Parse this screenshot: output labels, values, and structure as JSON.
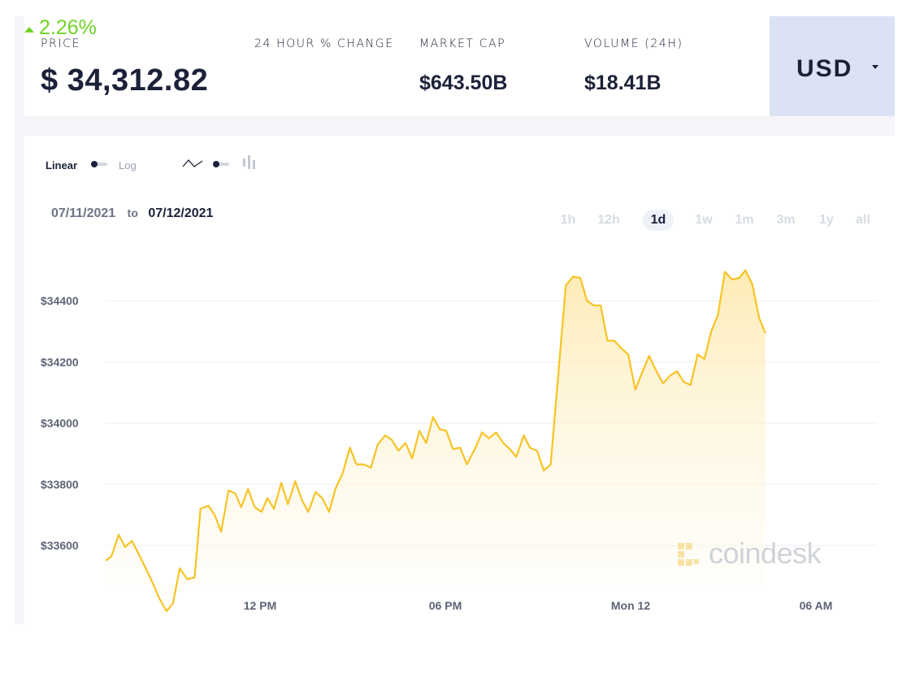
{
  "stats": {
    "price_label": "PRICE",
    "price_value": "$ 34,312.82",
    "change_label": "24 HOUR % CHANGE",
    "change_value": "2.26%",
    "market_cap_label": "MARKET CAP",
    "market_cap_value": "$643.50B",
    "volume_label": "VOLUME (24H)",
    "volume_value": "$18.41B"
  },
  "currency": {
    "selected": "USD",
    "icon": "caret-down-icon"
  },
  "controls": {
    "scale_linear": "Linear",
    "scale_log": "Log",
    "line_icon": "line-chart-icon",
    "candle_icon": "candlestick-icon"
  },
  "date_range": {
    "from": "07/11/2021",
    "to_word": "to",
    "to": "07/12/2021"
  },
  "ranges": [
    "1h",
    "12h",
    "1d",
    "1w",
    "1m",
    "3m",
    "1y",
    "all"
  ],
  "active_range": "1d",
  "watermark": "coindesk",
  "colors": {
    "line": "#f7c325",
    "fill": "#fdf1d0",
    "positive": "#70d326",
    "currency_bg": "#dbe2f3"
  },
  "chart_data": {
    "type": "area",
    "x_start": "07/11/2021 07:00",
    "x_end": "07/12/2021 08:00",
    "x_ticks": [
      {
        "label": "12 PM",
        "value": 5
      },
      {
        "label": "06 PM",
        "value": 11
      },
      {
        "label": "Mon 12",
        "value": 17
      },
      {
        "label": "06 AM",
        "value": 23
      }
    ],
    "y_ticks": [
      {
        "label": "$33600",
        "value": 33600
      },
      {
        "label": "$33800",
        "value": 33800
      },
      {
        "label": "$34000",
        "value": 34000
      },
      {
        "label": "$34200",
        "value": 34200
      },
      {
        "label": "$34400",
        "value": 34400
      }
    ],
    "ylim": [
      33470,
      34560
    ],
    "xlim": [
      0,
      25
    ],
    "points": [
      [
        0.0,
        33550
      ],
      [
        0.19,
        33565
      ],
      [
        0.42,
        33635
      ],
      [
        0.63,
        33595
      ],
      [
        0.85,
        33615
      ],
      [
        1.08,
        33570
      ],
      [
        1.3,
        33525
      ],
      [
        1.51,
        33480
      ],
      [
        1.72,
        33430
      ],
      [
        1.97,
        33385
      ],
      [
        2.18,
        33410
      ],
      [
        2.4,
        33525
      ],
      [
        2.64,
        33490
      ],
      [
        2.88,
        33495
      ],
      [
        3.07,
        33720
      ],
      [
        3.33,
        33730
      ],
      [
        3.53,
        33700
      ],
      [
        3.74,
        33645
      ],
      [
        3.98,
        33780
      ],
      [
        4.2,
        33770
      ],
      [
        4.39,
        33725
      ],
      [
        4.61,
        33785
      ],
      [
        4.83,
        33725
      ],
      [
        5.05,
        33710
      ],
      [
        5.24,
        33755
      ],
      [
        5.45,
        33720
      ],
      [
        5.69,
        33805
      ],
      [
        5.9,
        33735
      ],
      [
        6.14,
        33810
      ],
      [
        6.35,
        33750
      ],
      [
        6.56,
        33710
      ],
      [
        6.8,
        33775
      ],
      [
        7.01,
        33755
      ],
      [
        7.24,
        33710
      ],
      [
        7.44,
        33785
      ],
      [
        7.67,
        33835
      ],
      [
        7.91,
        33920
      ],
      [
        8.12,
        33865
      ],
      [
        8.35,
        33865
      ],
      [
        8.59,
        33855
      ],
      [
        8.81,
        33930
      ],
      [
        9.05,
        33960
      ],
      [
        9.27,
        33945
      ],
      [
        9.48,
        33910
      ],
      [
        9.71,
        33935
      ],
      [
        9.93,
        33885
      ],
      [
        10.16,
        33975
      ],
      [
        10.38,
        33935
      ],
      [
        10.6,
        34020
      ],
      [
        10.82,
        33980
      ],
      [
        11.03,
        33975
      ],
      [
        11.25,
        33915
      ],
      [
        11.48,
        33920
      ],
      [
        11.7,
        33865
      ],
      [
        12.0,
        33925
      ],
      [
        12.19,
        33970
      ],
      [
        12.41,
        33950
      ],
      [
        12.64,
        33970
      ],
      [
        12.88,
        33935
      ],
      [
        13.09,
        33915
      ],
      [
        13.3,
        33890
      ],
      [
        13.54,
        33960
      ],
      [
        13.74,
        33920
      ],
      [
        13.97,
        33910
      ],
      [
        14.19,
        33845
      ],
      [
        14.41,
        33865
      ],
      [
        14.9,
        34450
      ],
      [
        15.14,
        34480
      ],
      [
        15.37,
        34475
      ],
      [
        15.59,
        34400
      ],
      [
        15.81,
        34385
      ],
      [
        16.03,
        34385
      ],
      [
        16.25,
        34270
      ],
      [
        16.47,
        34270
      ],
      [
        16.7,
        34245
      ],
      [
        16.92,
        34225
      ],
      [
        17.15,
        34110
      ],
      [
        17.37,
        34165
      ],
      [
        17.6,
        34220
      ],
      [
        17.81,
        34175
      ],
      [
        18.05,
        34130
      ],
      [
        18.27,
        34155
      ],
      [
        18.5,
        34170
      ],
      [
        18.72,
        34135
      ],
      [
        18.94,
        34125
      ],
      [
        19.17,
        34225
      ],
      [
        19.39,
        34210
      ],
      [
        19.61,
        34300
      ],
      [
        19.83,
        34355
      ],
      [
        20.05,
        34495
      ],
      [
        20.29,
        34470
      ],
      [
        20.51,
        34475
      ],
      [
        20.72,
        34500
      ],
      [
        20.94,
        34455
      ],
      [
        21.16,
        34345
      ],
      [
        21.36,
        34295
      ]
    ]
  }
}
